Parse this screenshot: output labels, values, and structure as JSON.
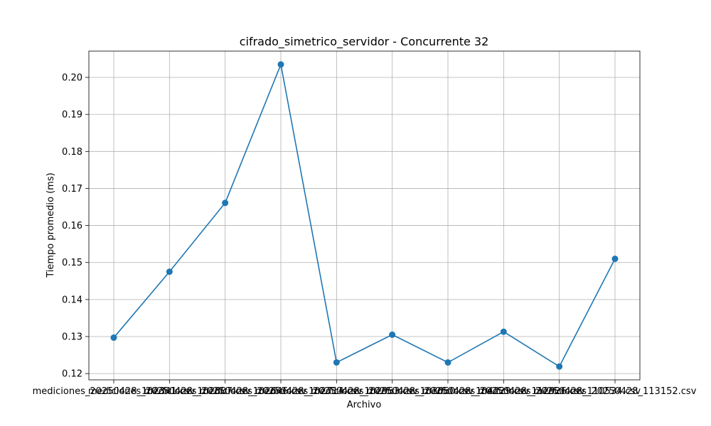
{
  "chart_data": {
    "type": "line",
    "title": "cifrado_simetrico_servidor - Concurrente 32",
    "xlabel": "Archivo",
    "ylabel": "Tiempo promedio (ms)",
    "categories": [
      "mediciones_20250428_102341.csv",
      "mediciones_20250428_102807.csv",
      "mediciones_20250428_102646.csv",
      "mediciones_20250428_102714.csv",
      "mediciones_20250428_102953.csv",
      "mediciones_20250428_103050.csv",
      "mediciones_20250428_104229.csv",
      "mediciones_20250428_112926.csv",
      "mediciones_20250428_110534.csv",
      "mediciones_20250428_113152.csv"
    ],
    "values": [
      0.1297,
      0.1475,
      0.1661,
      0.2035,
      0.123,
      0.1305,
      0.123,
      0.1313,
      0.1219,
      0.151
    ],
    "yticks": [
      "0.12",
      "0.13",
      "0.14",
      "0.15",
      "0.16",
      "0.17",
      "0.18",
      "0.19",
      "0.20"
    ],
    "ylim": [
      0.1183,
      0.2071
    ],
    "grid": true,
    "line_color": "#1f77b4",
    "marker": "circle"
  }
}
